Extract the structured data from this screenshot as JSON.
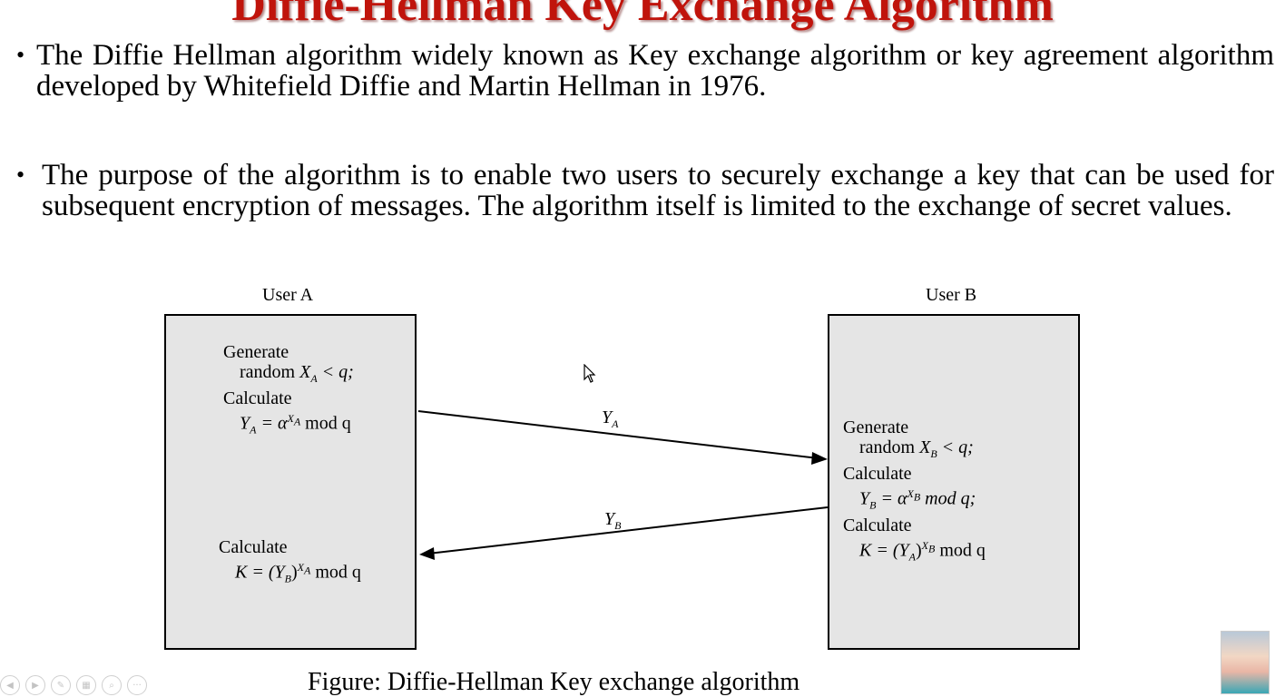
{
  "slide": {
    "title": "Diffie-Hellman Key Exchange Algorithm",
    "bullets": [
      "The Diffie Hellman algorithm widely known as Key exchange algorithm or key agreement algorithm developed by Whitefield Diffie and Martin Hellman in 1976.",
      "The purpose of the algorithm is to enable two users to securely exchange a key that can be used for subsequent encryption of messages. The algorithm itself is limited to the exchange of secret values."
    ],
    "bullet_symbol": "•"
  },
  "figure": {
    "user_a": {
      "label": "User A",
      "generate": "Generate",
      "random_prefix": "random ",
      "calculate": "Calculate",
      "calculate_key": "Calculate",
      "var_x": "X",
      "sub_a": "A",
      "lt_q": " < q;",
      "var_y": "Y",
      "eq_alpha": " = α",
      "mod_q": " mod q",
      "key_k": "K = (Y",
      "sub_b": "B",
      "close_paren": ")"
    },
    "user_b": {
      "label": "User B",
      "generate": "Generate",
      "random_prefix": "random ",
      "calculate": "Calculate",
      "calculate_key": "Calculate",
      "var_x": "X",
      "sub_b": "B",
      "lt_q": " < q;",
      "var_y": "Y",
      "eq_alpha": " = α",
      "mod_q_semi": " mod q;",
      "mod_q": " mod q",
      "key_k": "K = (Y",
      "sub_a": "A",
      "close_paren": ")"
    },
    "message_a_to_b": {
      "base": "Y",
      "sub": "A"
    },
    "message_b_to_a": {
      "base": "Y",
      "sub": "B"
    },
    "caption": "Figure: Diffie-Hellman Key exchange algorithm"
  },
  "toolbar": {
    "icons": [
      "prev-icon",
      "next-icon",
      "pen-icon",
      "slides-icon",
      "zoom-icon",
      "more-icon"
    ],
    "more_label": "···"
  }
}
